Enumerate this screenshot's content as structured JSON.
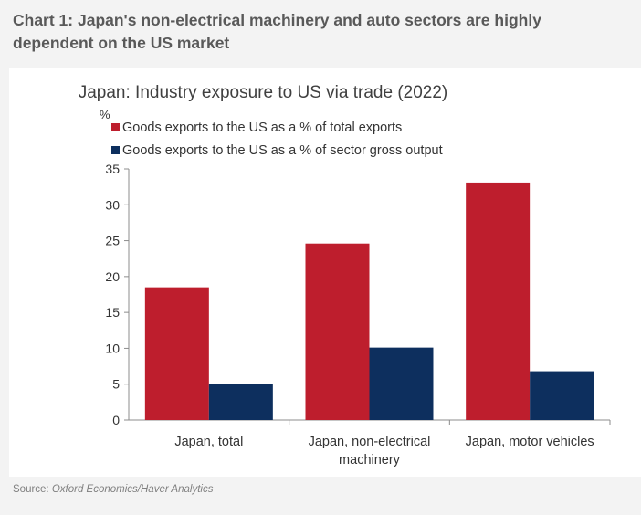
{
  "headline": "Chart 1: Japan's non-electrical machinery and auto sectors are highly dependent on the US market",
  "source_label": "Source:",
  "source_text": "Oxford Economics/Haver Analytics",
  "colors": {
    "series1": "#be1e2d",
    "series2": "#0d2f5e",
    "axis": "#8c8c8c",
    "text": "#333333"
  },
  "chart_data": {
    "type": "bar",
    "title": "Japan: Industry exposure to US via trade (2022)",
    "ylabel": "%",
    "xlabel": "",
    "ylim": [
      0,
      35
    ],
    "yticks": [
      0,
      5,
      10,
      15,
      20,
      25,
      30,
      35
    ],
    "grid": false,
    "legend_position": "top-left",
    "categories": [
      [
        "Japan, total"
      ],
      [
        "Japan, non-electrical",
        "machinery"
      ],
      [
        "Japan, motor vehicles"
      ]
    ],
    "series": [
      {
        "name": "Goods exports to the US as a % of total exports",
        "values": [
          18.5,
          24.6,
          33.1
        ]
      },
      {
        "name": "Goods exports to the US as a % of sector gross output",
        "values": [
          5.0,
          10.1,
          6.8
        ]
      }
    ]
  }
}
